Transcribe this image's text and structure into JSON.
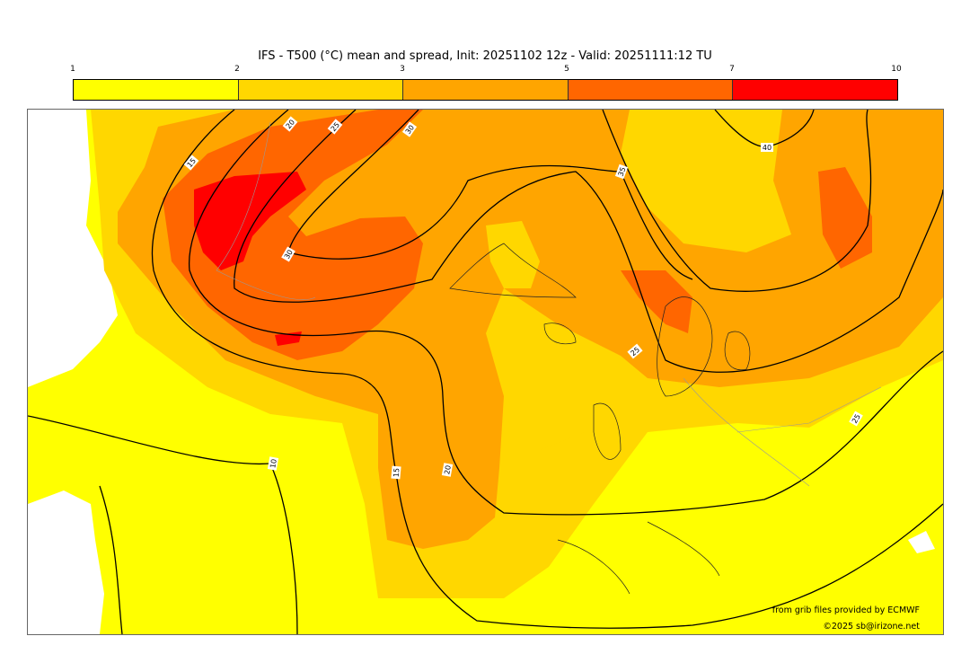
{
  "title": "IFS - T500 (°C) mean and spread, Init: 20251102 12z - Valid: 20251111:12 TU",
  "colorbar": {
    "ticks": [
      "1",
      "2",
      "3",
      "5",
      "7",
      "10"
    ],
    "colors": [
      "#ffff00",
      "#ffd700",
      "#ffa500",
      "#ff6600",
      "#ff0000"
    ]
  },
  "map": {
    "land_bg": "#ffffff",
    "contour_labels": [
      "10",
      "15",
      "15",
      "20",
      "20",
      "25",
      "25",
      "25",
      "30",
      "30",
      "35",
      "40"
    ]
  },
  "credits": {
    "source": "from grib files provided by ECMWF",
    "copyright": "©2025 sb@irizone.net"
  }
}
